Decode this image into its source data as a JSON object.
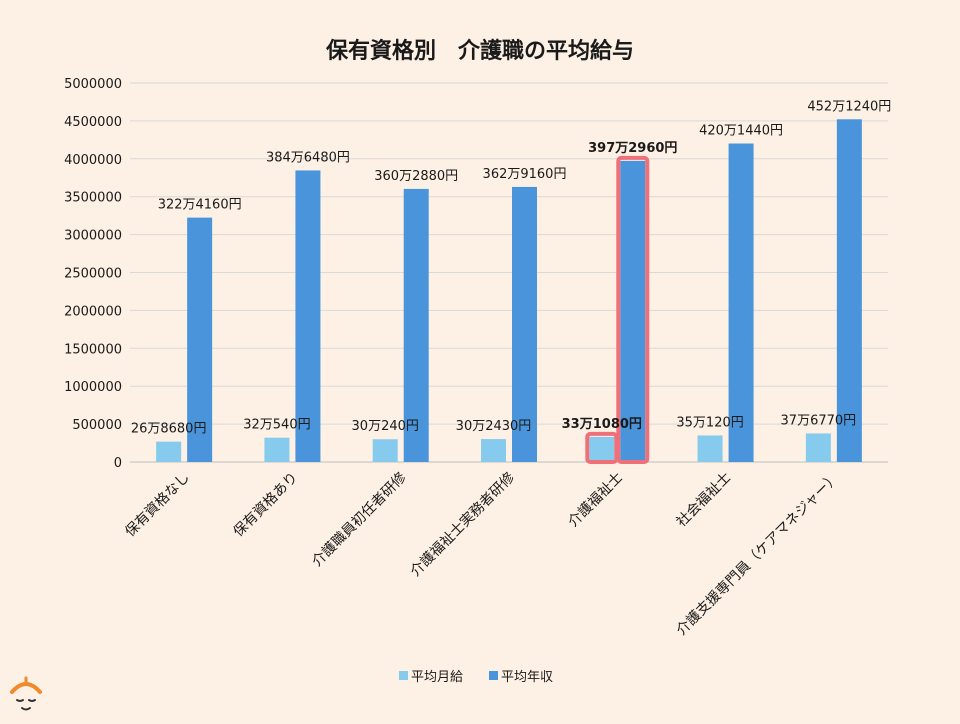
{
  "chart_data": {
    "type": "bar",
    "title": "保有資格別　介護職の平均給与",
    "xlabel": "",
    "ylabel": "",
    "ylim": [
      0,
      5000000
    ],
    "yticks": [
      0,
      500000,
      1000000,
      1500000,
      2000000,
      2500000,
      3000000,
      3500000,
      4000000,
      4500000,
      5000000
    ],
    "grid": true,
    "legend_position": "bottom",
    "categories": [
      "保有資格なし",
      "保有資格あり",
      "介護職員初任者研修",
      "介護福祉士実務者研修",
      "介護福祉士",
      "社会福祉士",
      "介護支援専門員（ケアマネジャー）"
    ],
    "highlight_index": 4,
    "colors": {
      "monthly": "#86cbee",
      "annual": "#4a94dc",
      "highlight": "#f0707a",
      "grid": "#d9d9d9"
    },
    "series": [
      {
        "name": "平均月給",
        "values": [
          268680,
          320540,
          300240,
          302430,
          331080,
          350120,
          376770
        ],
        "labels": [
          "26万8680円",
          "32万540円",
          "30万240円",
          "30万2430円",
          "33万1080円",
          "35万120円",
          "37万6770円"
        ]
      },
      {
        "name": "平均年収",
        "values": [
          3224160,
          3846480,
          3602880,
          3629160,
          3972960,
          4201440,
          4521240
        ],
        "labels": [
          "322万4160円",
          "384万6480円",
          "360万2880円",
          "362万9160円",
          "397万2960円",
          "420万1440円",
          "452万1240円"
        ]
      }
    ]
  },
  "decor": {
    "mascot": "person-face-icon"
  }
}
